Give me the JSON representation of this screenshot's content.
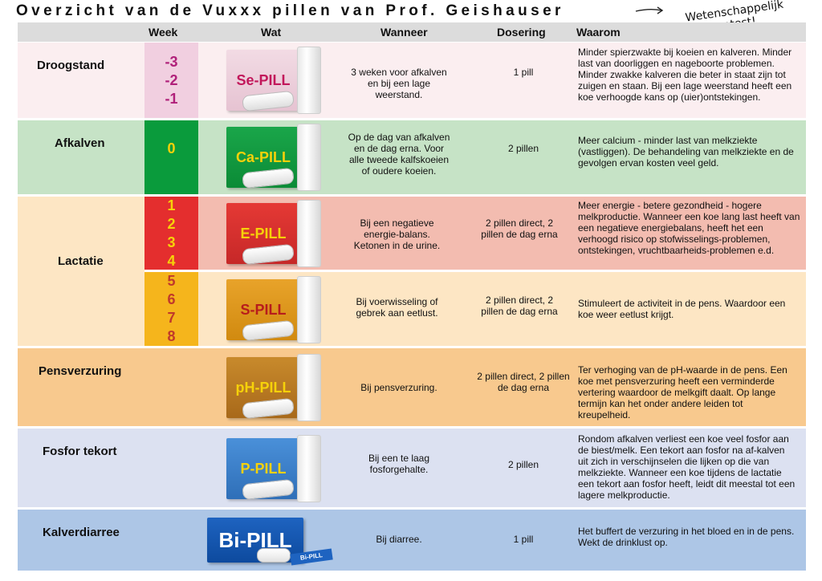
{
  "title": "Overzicht van de Vuxxx pillen van Prof. Geishauser",
  "note": [
    "Wetenschappelijk",
    "getest!"
  ],
  "headers": {
    "week": "Week",
    "wat": "Wat",
    "wanneer": "Wanneer",
    "dosering": "Dosering",
    "waarom": "Waarom"
  },
  "rows": {
    "droogstand": {
      "label": "Droogstand",
      "weeks": [
        "-3",
        "-2",
        "-1"
      ],
      "product": "Se-PILL",
      "wanneer": "3 weken voor afkalven en bij een lage weerstand.",
      "dosering": "1 pill",
      "waarom": "Minder spierzwakte bij koeien en kalveren. Minder last van doorliggen en nageboorte problemen. Minder zwakke kalveren die beter in staat zijn tot zuigen en staan. Bij een lage weerstand heeft een koe verhoogde kans op (uier)ontstekingen."
    },
    "afkalven": {
      "label": "Afkalven",
      "weeks": [
        "0"
      ],
      "product": "Ca-PILL",
      "wanneer": "Op de dag van afkalven en de dag erna. Voor alle tweede kalfskoeien of oudere koeien.",
      "dosering": "2 pillen",
      "waarom": "Meer calcium - minder last van melkziekte (vastliggen). De behandeling van melkziekte en de gevolgen ervan kosten veel geld."
    },
    "lactatie": {
      "label": "Lactatie"
    },
    "lactatie_e": {
      "weeks": [
        "1",
        "2",
        "3",
        "4"
      ],
      "product": "E-PILL",
      "wanneer": "Bij een negatieve energie-balans. Ketonen in de urine.",
      "dosering": "2 pillen direct, 2 pillen de dag erna",
      "waarom": "Meer energie - betere gezondheid - hogere melkproductie. Wanneer een koe lang last heeft van een negatieve energiebalans, heeft het een verhoogd risico op stofwisselings-problemen, ontstekingen, vruchtbaarheids-problemen e.d."
    },
    "lactatie_s": {
      "weeks": [
        "5",
        "6",
        "7",
        "8"
      ],
      "product": "S-PILL",
      "wanneer": "Bij voerwisseling of gebrek aan eetlust.",
      "dosering": "2 pillen direct, 2 pillen de dag erna",
      "waarom": "Stimuleert de activiteit in de pens. Waardoor een koe weer eetlust krijgt."
    },
    "pensverzuring": {
      "label": "Pensverzuring",
      "product": "pH-PILL",
      "wanneer": "Bij pensverzuring.",
      "dosering": "2 pillen direct, 2 pillen de dag erna",
      "waarom": "Ter verhoging van de pH-waarde in de pens. Een koe met pensverzuring heeft een verminderde vertering waardoor de melkgift daalt. Op lange termijn kan het onder andere leiden tot kreupelheid."
    },
    "fosfor": {
      "label": "Fosfor tekort",
      "product": "P-PILL",
      "wanneer": "Bij een te laag fosforgehalte.",
      "dosering": "2 pillen",
      "waarom": "Rondom afkalven verliest een koe veel fosfor aan de biest/melk. Een tekort aan fosfor na af-kalven uit zich in verschijnselen die lijken op die van melkziekte. Wanneer een koe tijdens de lactatie een tekort aan fosfor heeft, leidt dit meestal tot een lagere melkproductie."
    },
    "kalverdiarree": {
      "label": "Kalverdiarree",
      "product": "Bi-PILL",
      "mini_label": "Bi-PILL",
      "wanneer": "Bij diarree.",
      "dosering": "1 pill",
      "waarom": "Het buffert de verzuring in het bloed en in de pens. Wekt de drinklust op."
    }
  },
  "colors": {
    "header": "#dcdcdc",
    "droogstand_bg": "#fbeef0",
    "droogstand_week": "#f1cfe0",
    "droogstand_weektext": "#b0207a",
    "afkalven_bg": "#c6e3c6",
    "afkalven_week": "#0a9b3c",
    "afkalven_weektext": "#f6d10a",
    "lactatie_bg": "#fde6c4",
    "e_bg": "#f3bcb0",
    "e_week": "#e42e2e",
    "e_weektext": "#f6d10a",
    "s_bg": "#fde6c4",
    "s_week": "#f5b51c",
    "s_weektext": "#c0392b",
    "pensverzuring_bg": "#f8c98e",
    "fosfor_bg": "#dce1f1",
    "kalverdiarree_bg": "#adc6e6"
  }
}
